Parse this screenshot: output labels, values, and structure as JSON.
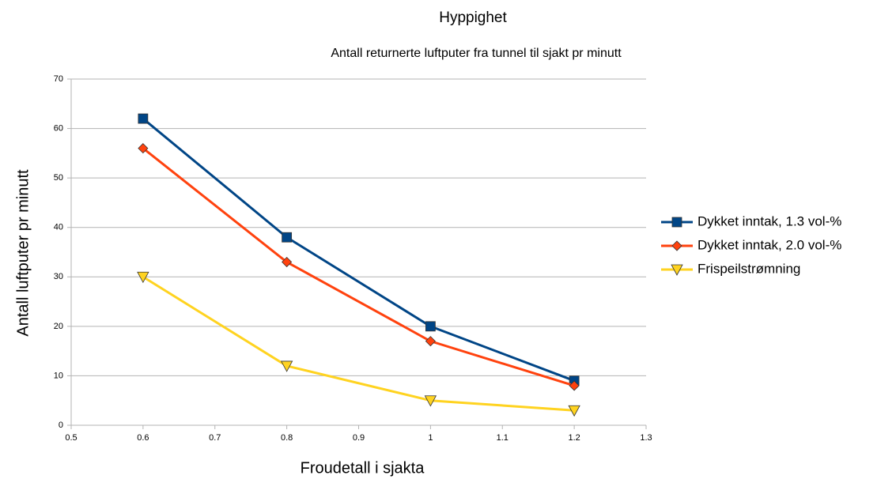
{
  "chart_data": {
    "type": "line",
    "title": "Hyppighet",
    "subtitle": "Antall returnerte luftputer fra tunnel til sjakt pr minutt",
    "x_label": "Froudetall i sjakta",
    "y_label": "Antall luftputer pr minutt",
    "x": [
      0.6,
      0.8,
      1,
      1.2
    ],
    "series": [
      {
        "name": "Dykket inntak, 1.3 vol-%",
        "color": "#004586",
        "marker": "square",
        "values": [
          62,
          38,
          20,
          9
        ]
      },
      {
        "name": "Dykket inntak, 2.0 vol-%",
        "color": "#ff420e",
        "marker": "diamond",
        "values": [
          56,
          33,
          17,
          8
        ]
      },
      {
        "name": "Frispeilstrømning",
        "color": "#ffd320",
        "marker": "triangle-down",
        "values": [
          30,
          12,
          5,
          3
        ]
      }
    ],
    "xlim": [
      0.5,
      1.3
    ],
    "xticks": [
      0.5,
      0.6,
      0.7,
      0.8,
      0.9,
      1,
      1.1,
      1.2,
      1.3
    ],
    "ylim": [
      0,
      70
    ],
    "yticks": [
      0,
      10,
      20,
      30,
      40,
      50,
      60,
      70
    ],
    "grid": true,
    "legend": "right"
  }
}
